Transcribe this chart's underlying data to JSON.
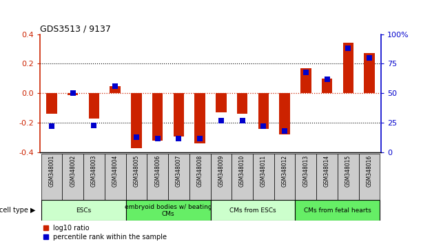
{
  "title": "GDS3513 / 9137",
  "samples": [
    "GSM348001",
    "GSM348002",
    "GSM348003",
    "GSM348004",
    "GSM348005",
    "GSM348006",
    "GSM348007",
    "GSM348008",
    "GSM348009",
    "GSM348010",
    "GSM348011",
    "GSM348012",
    "GSM348013",
    "GSM348014",
    "GSM348015",
    "GSM348016"
  ],
  "log10_ratio": [
    -0.14,
    -0.01,
    -0.17,
    0.05,
    -0.37,
    -0.32,
    -0.29,
    -0.34,
    -0.13,
    -0.14,
    -0.24,
    -0.28,
    0.17,
    0.1,
    0.34,
    0.27
  ],
  "percentile_rank": [
    22,
    50,
    23,
    56,
    13,
    12,
    12,
    12,
    27,
    27,
    22,
    18,
    68,
    62,
    88,
    80
  ],
  "cell_type_groups": [
    {
      "label": "ESCs",
      "start": 0,
      "end": 3,
      "color": "#ccffcc"
    },
    {
      "label": "embryoid bodies w/ beating\nCMs",
      "start": 4,
      "end": 7,
      "color": "#66ee66"
    },
    {
      "label": "CMs from ESCs",
      "start": 8,
      "end": 11,
      "color": "#ccffcc"
    },
    {
      "label": "CMs from fetal hearts",
      "start": 12,
      "end": 15,
      "color": "#66ee66"
    }
  ],
  "bar_color_red": "#cc2200",
  "bar_color_blue": "#0000cc",
  "ylim_left": [
    -0.4,
    0.4
  ],
  "ylim_right": [
    0,
    100
  ],
  "yticks_left": [
    -0.4,
    -0.2,
    0.0,
    0.2,
    0.4
  ],
  "yticks_right": [
    0,
    25,
    50,
    75,
    100
  ],
  "legend_red": "log10 ratio",
  "legend_blue": "percentile rank within the sample",
  "cell_type_label": "cell type",
  "bar_width": 0.5,
  "blue_marker_size": 6
}
